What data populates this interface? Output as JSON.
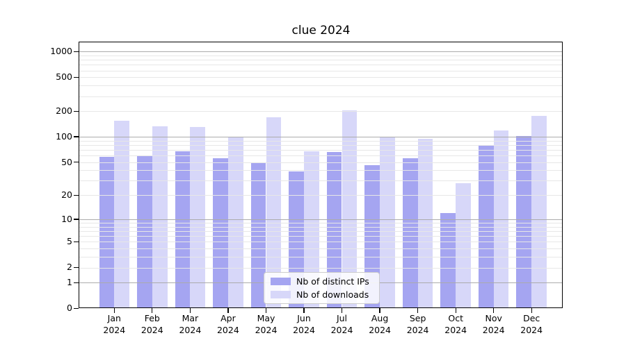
{
  "chart_data": {
    "type": "bar",
    "title": "clue 2024",
    "categories": [
      "Jan",
      "Feb",
      "Mar",
      "Apr",
      "May",
      "Jun",
      "Jul",
      "Aug",
      "Sep",
      "Oct",
      "Nov",
      "Dec"
    ],
    "category_year_label": "2024",
    "series": [
      {
        "name": "Nb of distinct IPs",
        "color": "#a5a5f1",
        "values": [
          58,
          60,
          68,
          56,
          50,
          39,
          66,
          46,
          56,
          12,
          78,
          103
        ]
      },
      {
        "name": "Nb of downloads",
        "color": "#d7d7f9",
        "values": [
          155,
          133,
          130,
          100,
          170,
          68,
          205,
          100,
          95,
          28,
          118,
          175
        ]
      }
    ],
    "y_ticks": [
      0,
      1,
      2,
      5,
      10,
      20,
      50,
      100,
      200,
      500,
      1000
    ],
    "y_scale": "log1p",
    "ylim": [
      0,
      1000
    ],
    "grid": "on",
    "major_grid_values": [
      1,
      10,
      100,
      1000
    ],
    "grid_major_color": "#ababab",
    "grid_minor_color": "#e7e7e7",
    "legend_position": "lower center",
    "xlabel": "",
    "ylabel": ""
  }
}
